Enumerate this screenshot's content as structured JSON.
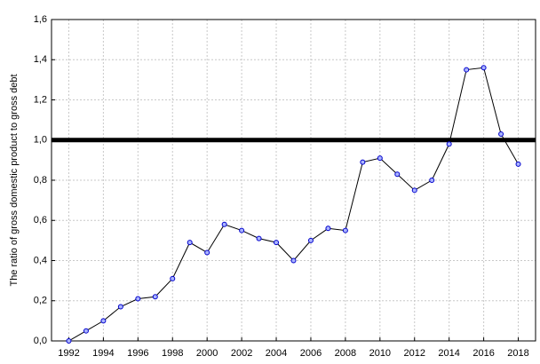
{
  "chart_data": {
    "type": "line",
    "ylabel": "The ratio of gross domestic product to gross debt",
    "x": [
      1992,
      1993,
      1994,
      1995,
      1996,
      1997,
      1998,
      1999,
      2000,
      2001,
      2002,
      2003,
      2004,
      2005,
      2006,
      2007,
      2008,
      2009,
      2010,
      2011,
      2012,
      2013,
      2014,
      2015,
      2016,
      2017,
      2018
    ],
    "series": [
      {
        "color": "#000000",
        "marker_color": "#0000cc",
        "values": [
          0.0,
          0.05,
          0.1,
          0.17,
          0.21,
          0.22,
          0.31,
          0.49,
          0.44,
          0.58,
          0.55,
          0.51,
          0.49,
          0.4,
          0.5,
          0.56,
          0.55,
          0.89,
          0.91,
          0.83,
          0.75,
          0.8,
          0.98,
          1.35,
          1.36,
          1.03,
          0.88
        ]
      }
    ],
    "hline": 1.0,
    "hline_color": "#000000",
    "xlim": [
      1991,
      2019
    ],
    "xticks": [
      1992,
      1994,
      1996,
      1998,
      2000,
      2002,
      2004,
      2006,
      2008,
      2010,
      2012,
      2014,
      2016,
      2018
    ],
    "ylim": [
      0,
      1.6
    ],
    "yticks": [
      {
        "value": 0,
        "label": "0,0"
      },
      {
        "value": 0.2,
        "label": "0,2"
      },
      {
        "value": 0.4,
        "label": "0,4"
      },
      {
        "value": 0.6,
        "label": "0,6"
      },
      {
        "value": 0.8,
        "label": "0,8"
      },
      {
        "value": 1.0,
        "label": "1,0"
      },
      {
        "value": 1.2,
        "label": "1,2"
      },
      {
        "value": 1.4,
        "label": "1,4"
      },
      {
        "value": 1.6,
        "label": "1,6"
      }
    ],
    "grid": true
  }
}
